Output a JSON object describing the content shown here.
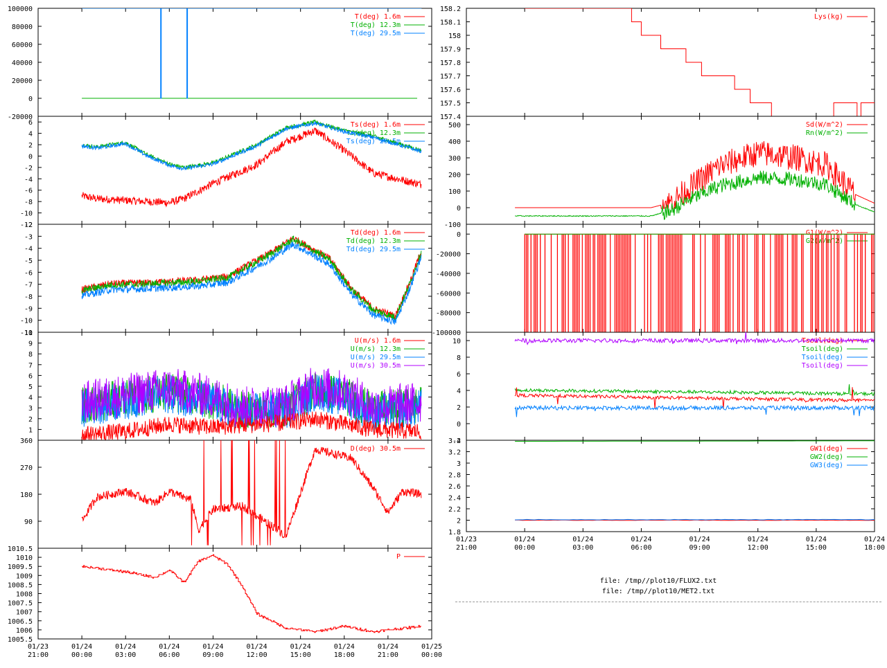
{
  "colors": {
    "red": "#ff0000",
    "green": "#00b000",
    "blue": "#0080ff",
    "purple": "#b000ff"
  },
  "files": [
    "file: /tmp//plot10/FLUX2.txt",
    "file: /tmp//plot10/MET2.txt"
  ],
  "chart_data": [
    {
      "id": "left-1",
      "type": "line",
      "ylim": [
        -20000,
        100000
      ],
      "yticks": [
        "100000",
        "80000",
        "60000",
        "40000",
        "20000",
        "0",
        "-20000"
      ],
      "series": [
        {
          "name": "T(deg)  1.6m",
          "color": "red"
        },
        {
          "name": "T(deg) 12.3m",
          "color": "green"
        },
        {
          "name": "T(deg) 29.5m",
          "color": "blue"
        }
      ]
    },
    {
      "id": "left-2",
      "type": "line",
      "ylim": [
        -12,
        7
      ],
      "yticks": [
        "6",
        "4",
        "2",
        "0",
        "-2",
        "-4",
        "-6",
        "-8",
        "-10",
        "-12"
      ],
      "series": [
        {
          "name": "Ts(deg)  1.6m",
          "color": "red"
        },
        {
          "name": "Ts(deg) 12.3m",
          "color": "green"
        },
        {
          "name": "Ts(deg) 29.5m",
          "color": "blue"
        }
      ]
    },
    {
      "id": "left-3",
      "type": "line",
      "ylim": [
        -11,
        -2
      ],
      "yticks": [
        "-2",
        "-3",
        "-4",
        "-5",
        "-6",
        "-7",
        "-8",
        "-9",
        "-10",
        "-11"
      ],
      "series": [
        {
          "name": "Td(deg)  1.6m",
          "color": "red"
        },
        {
          "name": "Td(deg) 12.3m",
          "color": "green"
        },
        {
          "name": "Td(deg) 29.5m",
          "color": "blue"
        }
      ]
    },
    {
      "id": "left-4",
      "type": "line",
      "ylim": [
        0,
        10
      ],
      "yticks": [
        "10",
        "9",
        "8",
        "7",
        "6",
        "5",
        "4",
        "3",
        "2",
        "1"
      ],
      "series": [
        {
          "name": "U(m/s)  1.6m",
          "color": "red"
        },
        {
          "name": "U(m/s) 12.3m",
          "color": "green"
        },
        {
          "name": "U(m/s) 29.5m",
          "color": "blue"
        },
        {
          "name": "U(m/s) 30.5m",
          "color": "purple"
        }
      ]
    },
    {
      "id": "left-5",
      "type": "line",
      "ylim": [
        0,
        360
      ],
      "yticks": [
        "360",
        "270",
        "180",
        "90"
      ],
      "series": [
        {
          "name": "D(deg)  30.5m",
          "color": "red"
        }
      ]
    },
    {
      "id": "left-6",
      "type": "line",
      "ylim": [
        1005.5,
        1010.5
      ],
      "yticks": [
        "1010.5",
        "1010",
        "1009.5",
        "1009",
        "1008.5",
        "1008",
        "1007.5",
        "1007",
        "1006.5",
        "1006",
        "1005.5"
      ],
      "yticklabels": [
        "1010.5",
        "1010",
        "1009.5",
        "1009",
        "1008.5",
        "1008",
        "1007.5",
        "1007",
        "1006.5",
        "1006",
        "1005.5"
      ],
      "series": [
        {
          "name": "P",
          "color": "red"
        }
      ],
      "xticks": [
        [
          "01/23",
          "21:00"
        ],
        [
          "01/24",
          "00:00"
        ],
        [
          "01/24",
          "03:00"
        ],
        [
          "01/24",
          "06:00"
        ],
        [
          "01/24",
          "09:00"
        ],
        [
          "01/24",
          "12:00"
        ],
        [
          "01/24",
          "15:00"
        ],
        [
          "01/24",
          "18:00"
        ],
        [
          "01/24",
          "21:00"
        ],
        [
          "01/25",
          "00:00"
        ]
      ]
    },
    {
      "id": "right-1",
      "type": "line",
      "ylim": [
        157.4,
        158.2
      ],
      "yticks": [
        "158.2",
        "158.1",
        "158",
        "157.9",
        "157.8",
        "157.7",
        "157.6",
        "157.5",
        "157.4"
      ],
      "series": [
        {
          "name": "Lys(kg)",
          "color": "red"
        }
      ]
    },
    {
      "id": "right-2",
      "type": "line",
      "ylim": [
        -100,
        550
      ],
      "yticks": [
        "500",
        "400",
        "300",
        "200",
        "100",
        "0",
        "-100"
      ],
      "series": [
        {
          "name": "Sd(W/m^2)",
          "color": "red"
        },
        {
          "name": "Rn(W/m^2)",
          "color": "green"
        }
      ]
    },
    {
      "id": "right-3",
      "type": "line",
      "ylim": [
        -100000,
        10000
      ],
      "yticks": [
        "0",
        "-20000",
        "-40000",
        "-60000",
        "-80000",
        "-100000"
      ],
      "series": [
        {
          "name": "G1(W/m^2)",
          "color": "red"
        },
        {
          "name": "G2(W/m^2)",
          "color": "green"
        }
      ]
    },
    {
      "id": "right-4",
      "type": "line",
      "ylim": [
        -2,
        11
      ],
      "yticks": [
        "10",
        "8",
        "6",
        "4",
        "2",
        "0",
        "-2"
      ],
      "series": [
        {
          "name": "Tsoil(deg)",
          "color": "red"
        },
        {
          "name": "Tsoil(deg)",
          "color": "green"
        },
        {
          "name": "Tsoil(deg)",
          "color": "blue"
        },
        {
          "name": "Tsoil(deg)",
          "color": "purple"
        }
      ]
    },
    {
      "id": "right-5",
      "type": "line",
      "ylim": [
        1.8,
        3.4
      ],
      "yticks": [
        "3.4",
        "3.2",
        "3",
        "2.8",
        "2.6",
        "2.4",
        "2.2",
        "2",
        "1.8"
      ],
      "series": [
        {
          "name": "GW1(deg)",
          "color": "red"
        },
        {
          "name": "GW2(deg)",
          "color": "green"
        },
        {
          "name": "GW3(deg)",
          "color": "blue"
        }
      ],
      "xticks": [
        [
          "01/23",
          "21:00"
        ],
        [
          "01/24",
          "00:00"
        ],
        [
          "01/24",
          "03:00"
        ],
        [
          "01/24",
          "06:00"
        ],
        [
          "01/24",
          "09:00"
        ],
        [
          "01/24",
          "12:00"
        ],
        [
          "01/24",
          "15:00"
        ],
        [
          "01/24",
          "18:00"
        ]
      ]
    }
  ]
}
